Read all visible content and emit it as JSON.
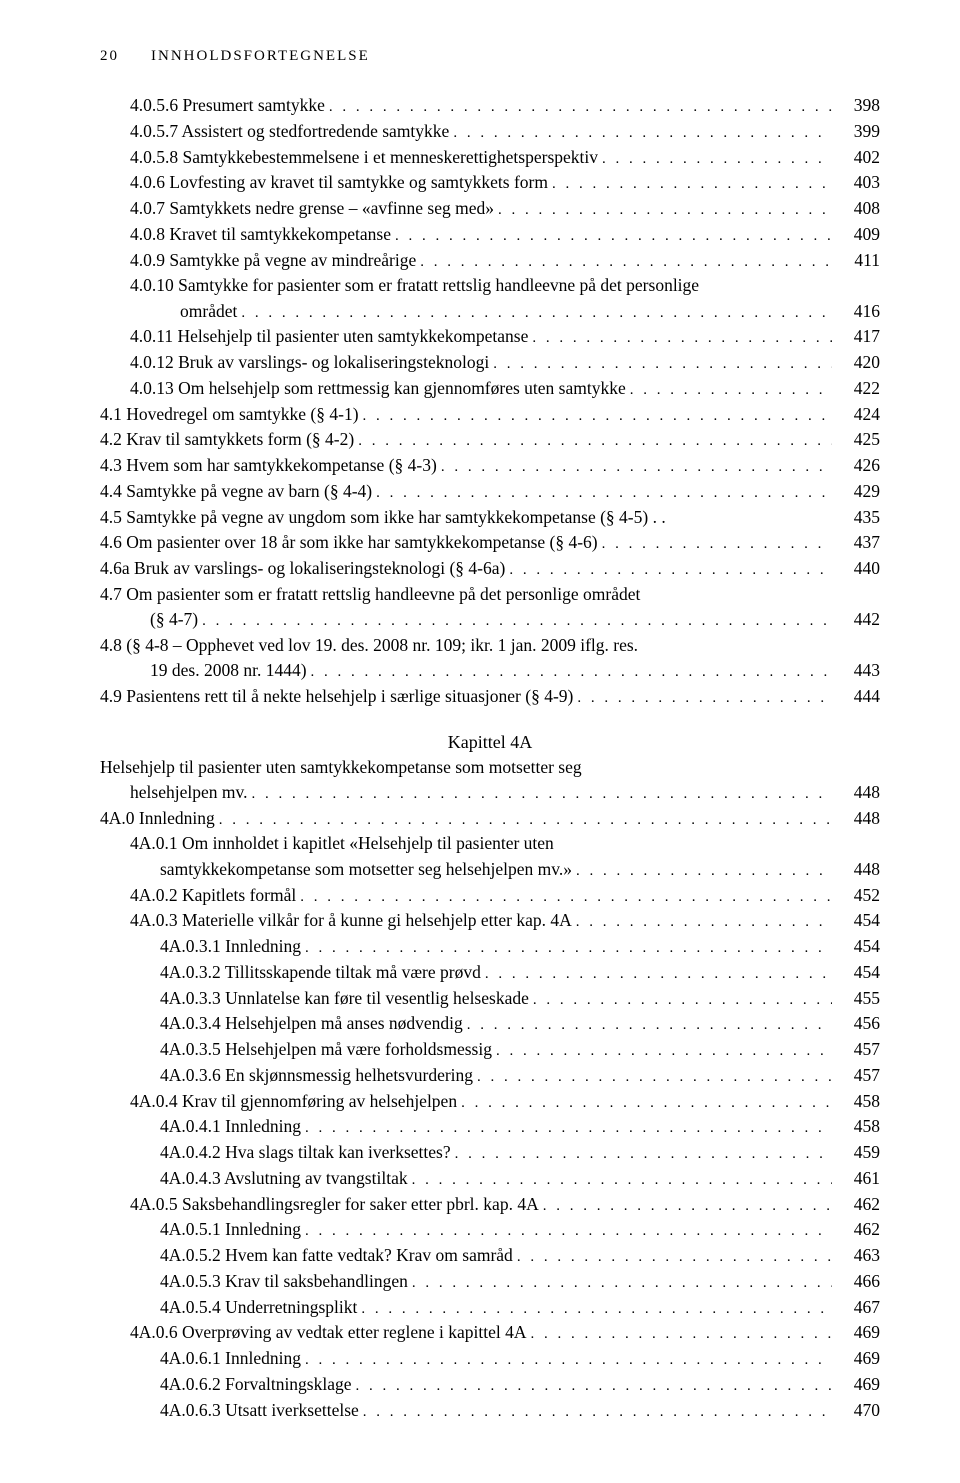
{
  "header": {
    "page_number": "20",
    "running_title": "INNHOLDSFORTEGNELSE"
  },
  "toc_block1": [
    {
      "indent": 1,
      "label": "4.0.5.6 Presumert samtykke",
      "page": "398"
    },
    {
      "indent": 1,
      "label": "4.0.5.7 Assistert og stedfortredende samtykke",
      "page": "399"
    },
    {
      "indent": 1,
      "label": "4.0.5.8 Samtykkebestemmelsene i et menneskerettighetsperspektiv",
      "page": "402"
    },
    {
      "indent": 1,
      "label": "4.0.6 Lovfesting av kravet til samtykke og samtykkets form",
      "page": "403"
    },
    {
      "indent": 1,
      "label": "4.0.7 Samtykkets nedre grense – «avfinne seg med»",
      "page": "408"
    },
    {
      "indent": 1,
      "label": "4.0.8 Kravet til samtykkekompetanse",
      "page": "409"
    },
    {
      "indent": 1,
      "label": "4.0.9 Samtykke på vegne av mindreårige",
      "page": "411"
    }
  ],
  "toc_wrap1": {
    "first": "4.0.10 Samtykke for pasienter som er fratatt rettslig handleevne på det personlige",
    "second": "området",
    "page": "416"
  },
  "toc_block2": [
    {
      "indent": 1,
      "label": "4.0.11 Helsehjelp til pasienter uten samtykkekompetanse",
      "page": "417"
    },
    {
      "indent": 1,
      "label": "4.0.12 Bruk av varslings- og lokaliseringsteknologi",
      "page": "420"
    },
    {
      "indent": 1,
      "label": "4.0.13 Om helsehjelp som rettmessig kan gjennomføres uten samtykke",
      "page": "422"
    },
    {
      "indent": 0,
      "label": "4.1 Hovedregel om samtykke (§ 4-1)",
      "page": "424"
    },
    {
      "indent": 0,
      "label": "4.2 Krav til samtykkets form (§ 4-2)",
      "page": "425"
    },
    {
      "indent": 0,
      "label": "4.3 Hvem som har samtykkekompetanse (§ 4-3)",
      "page": "426"
    },
    {
      "indent": 0,
      "label": "4.4 Samtykke på vegne av barn (§ 4-4)",
      "page": "429"
    },
    {
      "indent": 0,
      "label": "4.5 Samtykke på vegne av ungdom som ikke har samtykkekompetanse (§ 4-5) . .",
      "page": "435",
      "nodots": true
    },
    {
      "indent": 0,
      "label": "4.6 Om pasienter over 18 år som ikke har samtykkekompetanse (§ 4-6)",
      "page": "437"
    },
    {
      "indent": 0,
      "label": "4.6a Bruk av varslings- og lokaliseringsteknologi (§ 4-6a)",
      "page": "440"
    }
  ],
  "toc_wrap2": {
    "first": "4.7 Om pasienter som er fratatt rettslig handleevne på det personlige området",
    "second": "(§ 4-7)",
    "page": "442"
  },
  "toc_wrap3": {
    "first": "4.8 (§ 4-8 – Opphevet ved lov 19. des. 2008 nr. 109; ikr. 1 jan. 2009 iflg. res.",
    "second": "19 des. 2008 nr. 1444)",
    "page": "443"
  },
  "toc_block3": [
    {
      "indent": 0,
      "label": "4.9 Pasientens rett til å nekte helsehjelp i særlige situasjoner (§ 4-9)",
      "page": "444"
    }
  ],
  "chapter4a_heading": "Kapittel 4A",
  "toc_wrap4": {
    "first": "Helsehjelp til pasienter uten samtykkekompetanse som motsetter seg",
    "second": "helsehjelpen mv.",
    "page": "448"
  },
  "toc_block4": [
    {
      "indent": 0,
      "label": "4A.0 Innledning",
      "page": "448"
    }
  ],
  "toc_wrap5": {
    "first": "4A.0.1 Om innholdet i kapitlet «Helsehjelp til pasienter uten",
    "second": "samtykkekompetanse som motsetter seg helsehjelpen mv.»",
    "page": "448"
  },
  "toc_block5": [
    {
      "indent": 1,
      "label": "4A.0.2 Kapitlets formål",
      "page": "452"
    },
    {
      "indent": 1,
      "label": "4A.0.3 Materielle vilkår for å kunne gi helsehjelp etter kap. 4A",
      "page": "454"
    },
    {
      "indent": 2,
      "label": "4A.0.3.1 Innledning",
      "page": "454"
    },
    {
      "indent": 2,
      "label": "4A.0.3.2 Tillitsskapende tiltak må være prøvd",
      "page": "454"
    },
    {
      "indent": 2,
      "label": "4A.0.3.3 Unnlatelse kan føre til vesentlig helseskade",
      "page": "455"
    },
    {
      "indent": 2,
      "label": "4A.0.3.4 Helsehjelpen må anses nødvendig",
      "page": "456"
    },
    {
      "indent": 2,
      "label": "4A.0.3.5 Helsehjelpen må være forholdsmessig",
      "page": "457"
    },
    {
      "indent": 2,
      "label": "4A.0.3.6 En skjønnsmessig helhetsvurdering",
      "page": "457"
    },
    {
      "indent": 1,
      "label": "4A.0.4 Krav til gjennomføring av helsehjelpen",
      "page": "458"
    },
    {
      "indent": 2,
      "label": "4A.0.4.1 Innledning",
      "page": "458"
    },
    {
      "indent": 2,
      "label": "4A.0.4.2 Hva slags tiltak kan iverksettes?",
      "page": "459"
    },
    {
      "indent": 2,
      "label": "4A.0.4.3 Avslutning av tvangstiltak",
      "page": "461"
    },
    {
      "indent": 1,
      "label": "4A.0.5 Saksbehandlingsregler for saker etter pbrl. kap. 4A",
      "page": "462"
    },
    {
      "indent": 2,
      "label": "4A.0.5.1 Innledning",
      "page": "462"
    },
    {
      "indent": 2,
      "label": "4A.0.5.2 Hvem kan fatte vedtak? Krav om samråd",
      "page": "463"
    },
    {
      "indent": 2,
      "label": "4A.0.5.3 Krav til saksbehandlingen",
      "page": "466"
    },
    {
      "indent": 2,
      "label": "4A.0.5.4 Underretningsplikt",
      "page": "467"
    },
    {
      "indent": 1,
      "label": "4A.0.6 Overprøving av vedtak etter reglene i kapittel 4A",
      "page": "469"
    },
    {
      "indent": 2,
      "label": "4A.0.6.1 Innledning",
      "page": "469"
    },
    {
      "indent": 2,
      "label": "4A.0.6.2 Forvaltningsklage",
      "page": "469"
    },
    {
      "indent": 2,
      "label": "4A.0.6.3 Utsatt iverksettelse",
      "page": "470"
    }
  ]
}
